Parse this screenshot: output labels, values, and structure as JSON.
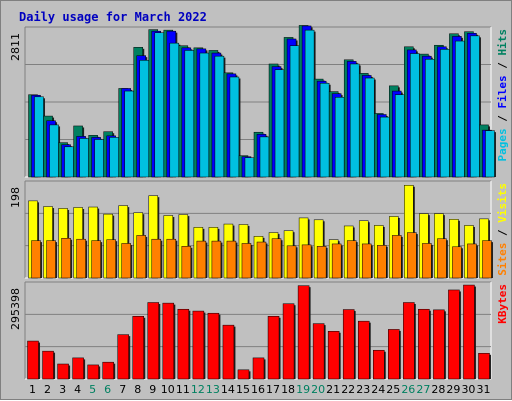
{
  "title": "Daily usage for March 2022",
  "colors": {
    "background": "#c0c0c0",
    "plot": "#c0c0c0",
    "title": "#0000c0",
    "pages": "#008060",
    "files": "#0000ff",
    "hits": "#00c0e0",
    "sites": "#ff8000",
    "visits": "#ffff00",
    "kbytes": "#ff0000",
    "weekend_day_label": "#008060"
  },
  "chart_data": [
    {
      "type": "bar",
      "name_parts": [
        {
          "text": "Pages",
          "color": "#00c0e0"
        },
        {
          "text": " / ",
          "color": "#000000"
        },
        {
          "text": "Files",
          "color": "#0000ff"
        },
        {
          "text": " / ",
          "color": "#000000"
        },
        {
          "text": "Hits",
          "color": "#008060"
        }
      ],
      "ymax_label": "2811",
      "ylim": [
        0,
        2880
      ],
      "grid": true,
      "series": [
        {
          "name": "Pages",
          "color": "#008060",
          "values": [
            1580,
            1170,
            660,
            980,
            800,
            870,
            1700,
            2490,
            2830,
            2820,
            2520,
            2480,
            2430,
            2000,
            410,
            860,
            2170,
            2680,
            2910,
            1880,
            1640,
            2250,
            1990,
            1220,
            1750,
            2500,
            2360,
            2530,
            2750,
            2790,
            1000
          ]
        },
        {
          "name": "Files",
          "color": "#0000ff",
          "values": [
            1570,
            1080,
            620,
            780,
            760,
            790,
            1700,
            2330,
            2800,
            2800,
            2480,
            2460,
            2380,
            1980,
            390,
            820,
            2120,
            2650,
            2900,
            1840,
            1600,
            2220,
            1950,
            1200,
            1650,
            2440,
            2320,
            2500,
            2700,
            2760,
            900
          ]
        },
        {
          "name": "Hits",
          "color": "#00c0e0",
          "values": [
            1540,
            1000,
            580,
            740,
            720,
            760,
            1650,
            2240,
            2770,
            2570,
            2430,
            2380,
            2320,
            1920,
            370,
            770,
            2060,
            2520,
            2820,
            1800,
            1530,
            2170,
            1900,
            1150,
            1580,
            2370,
            2260,
            2450,
            2610,
            2710,
            890
          ]
        }
      ]
    },
    {
      "type": "bar",
      "name_parts": [
        {
          "text": "Sites",
          "color": "#ff8000"
        },
        {
          "text": " / ",
          "color": "#000000"
        },
        {
          "text": "Visits",
          "color": "#ffff00"
        }
      ],
      "ymax_label": "198",
      "ylim": [
        0,
        205
      ],
      "grid": true,
      "series": [
        {
          "name": "Sites",
          "color": "#ff8000",
          "values": [
            79,
            79,
            84,
            82,
            79,
            81,
            73,
            90,
            82,
            82,
            67,
            78,
            78,
            78,
            73,
            76,
            83,
            68,
            70,
            67,
            72,
            79,
            72,
            69,
            90,
            96,
            73,
            83,
            66,
            72,
            79
          ]
        },
        {
          "name": "Visits",
          "color": "#ffff00",
          "values": [
            163,
            151,
            147,
            149,
            150,
            135,
            153,
            138,
            174,
            132,
            134,
            107,
            107,
            114,
            113,
            88,
            96,
            100,
            127,
            123,
            81,
            110,
            121,
            111,
            130,
            196,
            136,
            136,
            124,
            111,
            125
          ]
        }
      ]
    },
    {
      "type": "bar",
      "name_parts": [
        {
          "text": "KBytes",
          "color": "#ff0000"
        }
      ],
      "ymax_label": "295398",
      "ylim": [
        0,
        317000
      ],
      "grid": true,
      "series": [
        {
          "name": "KBytes",
          "color": "#ff0000",
          "values": [
            124000,
            91000,
            49000,
            69000,
            46000,
            55000,
            145000,
            205000,
            250000,
            248000,
            228000,
            222000,
            215000,
            176000,
            30000,
            69000,
            205000,
            246000,
            305000,
            181000,
            156000,
            227000,
            189000,
            94000,
            162000,
            250000,
            228000,
            226000,
            291000,
            307000,
            84000
          ]
        }
      ]
    }
  ],
  "days": [
    "1",
    "2",
    "3",
    "4",
    "5",
    "6",
    "7",
    "8",
    "9",
    "10",
    "11",
    "12",
    "13",
    "14",
    "15",
    "16",
    "17",
    "18",
    "19",
    "20",
    "21",
    "22",
    "23",
    "24",
    "25",
    "26",
    "27",
    "28",
    "29",
    "30",
    "31"
  ],
  "weekend_days": [
    "5",
    "6",
    "12",
    "13",
    "19",
    "20",
    "26",
    "27"
  ]
}
